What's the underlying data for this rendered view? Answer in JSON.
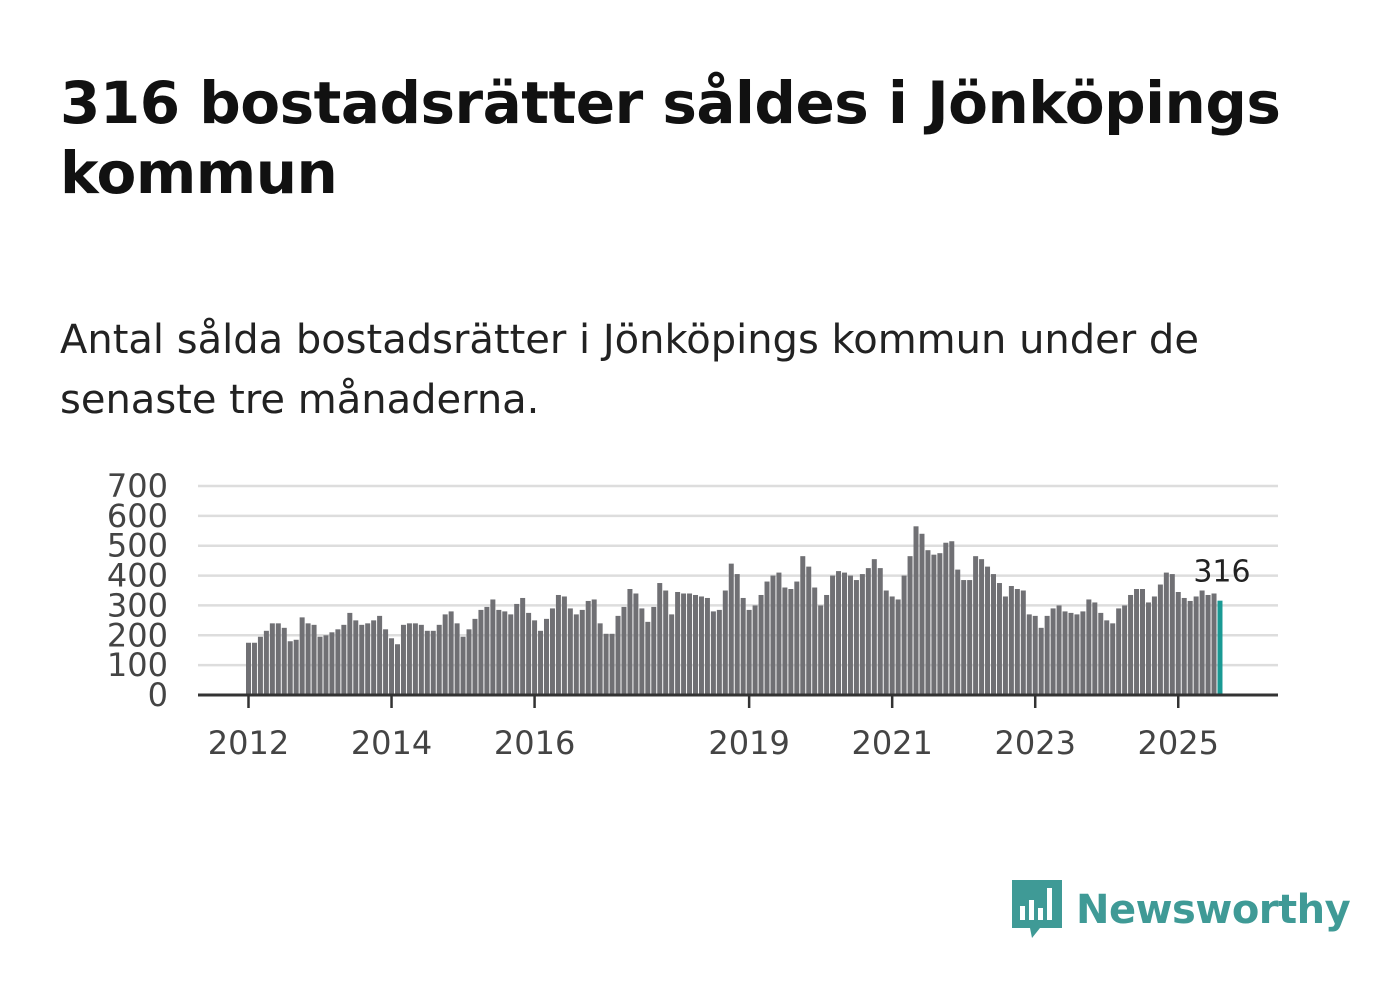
{
  "header": {
    "title": "316 bostadsrätter såldes i Jönköpings kommun",
    "subtitle": "Antal sålda bostadsrätter i Jönköpings kommun under de senaste tre månaderna."
  },
  "brand": {
    "name": "Newsworthy",
    "logo_icon": "bar-chart-speech-bubble-icon"
  },
  "colors": {
    "bar": "#707074",
    "highlight": "#1a9a94",
    "grid": "#dddddd",
    "axis": "#333333",
    "brand": "#3f9a96"
  },
  "chart_data": {
    "type": "bar",
    "title": "",
    "xlabel": "",
    "ylabel": "",
    "ylim": [
      0,
      700
    ],
    "yticks": [
      0,
      100,
      200,
      300,
      400,
      500,
      600,
      700
    ],
    "xticks": [
      {
        "label": "2012",
        "index": 0
      },
      {
        "label": "2014",
        "index": 24
      },
      {
        "label": "2016",
        "index": 48
      },
      {
        "label": "2019",
        "index": 84
      },
      {
        "label": "2021",
        "index": 108
      },
      {
        "label": "2023",
        "index": 132
      },
      {
        "label": "2025",
        "index": 156
      }
    ],
    "grid": true,
    "annotation": {
      "label": "316",
      "index": 163
    },
    "series": [
      {
        "name": "Antal sålda bostadsrätter",
        "values": [
          175,
          175,
          195,
          215,
          240,
          240,
          225,
          180,
          185,
          260,
          240,
          235,
          195,
          200,
          210,
          220,
          235,
          275,
          250,
          235,
          240,
          250,
          265,
          220,
          190,
          170,
          235,
          240,
          240,
          235,
          215,
          215,
          235,
          270,
          280,
          240,
          195,
          220,
          255,
          285,
          295,
          320,
          285,
          280,
          270,
          305,
          325,
          275,
          250,
          215,
          255,
          290,
          335,
          330,
          290,
          270,
          285,
          315,
          320,
          240,
          205,
          205,
          265,
          295,
          355,
          340,
          290,
          245,
          295,
          375,
          350,
          270,
          345,
          340,
          340,
          335,
          330,
          325,
          280,
          285,
          350,
          440,
          405,
          325,
          285,
          300,
          335,
          380,
          400,
          410,
          360,
          355,
          380,
          465,
          430,
          360,
          300,
          335,
          400,
          415,
          410,
          400,
          385,
          405,
          425,
          455,
          425,
          350,
          330,
          320,
          400,
          465,
          565,
          540,
          485,
          470,
          475,
          510,
          515,
          420,
          385,
          385,
          465,
          455,
          430,
          405,
          375,
          330,
          365,
          355,
          350,
          270,
          265,
          225,
          265,
          290,
          300,
          280,
          275,
          270,
          280,
          320,
          310,
          275,
          250,
          240,
          290,
          300,
          335,
          355,
          355,
          310,
          330,
          370,
          410,
          405,
          345,
          325,
          315,
          330,
          350,
          335,
          340,
          316
        ]
      }
    ]
  }
}
